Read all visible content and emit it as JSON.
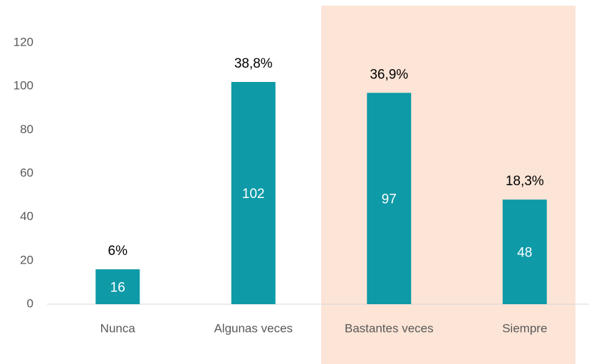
{
  "chart_data": {
    "type": "bar",
    "categories": [
      "Nunca",
      "Algunas veces",
      "Bastantes veces",
      "Siempre"
    ],
    "values": [
      16,
      102,
      97,
      48
    ],
    "color": "#0e9aa7",
    "annotations": [
      "6%",
      "38,8%",
      "36,9%",
      "18,3%"
    ],
    "highlight_categories": [
      2,
      3
    ],
    "highlight_color": "#fce4d6",
    "ylim": [
      0,
      120
    ],
    "yticks": [
      0,
      20,
      40,
      60,
      80,
      100,
      120
    ],
    "grid": false
  }
}
